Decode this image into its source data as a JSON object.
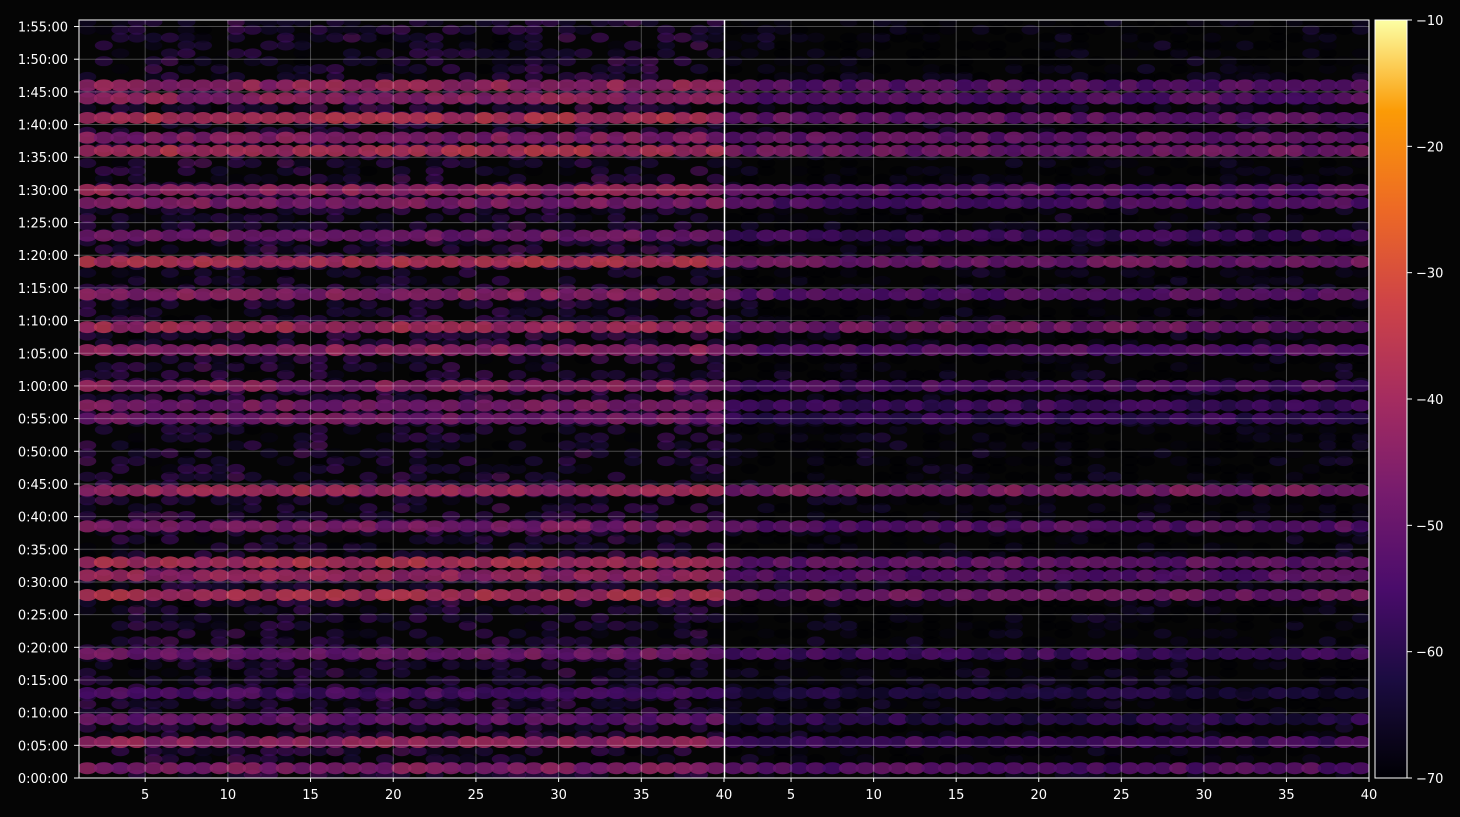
{
  "chart_data": {
    "type": "heatmap",
    "title": "",
    "panels": [
      {
        "name": "",
        "x_ticks": [
          5,
          10,
          15,
          20,
          25,
          30,
          35,
          40
        ],
        "xlim": [
          1,
          40
        ]
      },
      {
        "name": "",
        "x_ticks": [
          5,
          10,
          15,
          20,
          25,
          30,
          35,
          40
        ],
        "xlim": [
          1,
          40
        ]
      }
    ],
    "y_ticks": [
      "0:00:00",
      "0:05:00",
      "0:10:00",
      "0:15:00",
      "0:20:00",
      "0:25:00",
      "0:30:00",
      "0:35:00",
      "0:40:00",
      "0:45:00",
      "0:50:00",
      "0:55:00",
      "1:00:00",
      "1:05:00",
      "1:10:00",
      "1:15:00",
      "1:20:00",
      "1:25:00",
      "1:30:00",
      "1:35:00",
      "1:40:00",
      "1:45:00",
      "1:50:00",
      "1:55:00"
    ],
    "ylim_minutes": [
      0,
      116
    ],
    "colorbar": {
      "ticks": [
        "−10",
        "−20",
        "−30",
        "−40",
        "−50",
        "−60",
        "−70"
      ],
      "range": [
        -70,
        -10
      ],
      "colormap": "inferno"
    },
    "grid": true,
    "row_intensity": {
      "note_minutes": [
        1.5,
        5.5,
        9,
        13,
        19,
        28,
        31,
        33,
        38.5,
        44,
        55,
        57,
        60,
        65.5,
        69,
        74,
        79,
        83,
        88,
        90,
        96,
        98,
        101,
        104,
        106
      ],
      "left_panel_values": [
        -45,
        -42,
        -50,
        -55,
        -48,
        -38,
        -42,
        -38,
        -46,
        -40,
        -48,
        -47,
        -44,
        -43,
        -40,
        -44,
        -38,
        -48,
        -46,
        -42,
        -38,
        -45,
        -38,
        -43,
        -42
      ],
      "right_panel_values": [
        -52,
        -55,
        -60,
        -62,
        -56,
        -48,
        -52,
        -50,
        -52,
        -46,
        -58,
        -56,
        -54,
        -52,
        -48,
        -52,
        -48,
        -56,
        -54,
        -52,
        -48,
        -50,
        -50,
        -52,
        -52
      ]
    }
  }
}
